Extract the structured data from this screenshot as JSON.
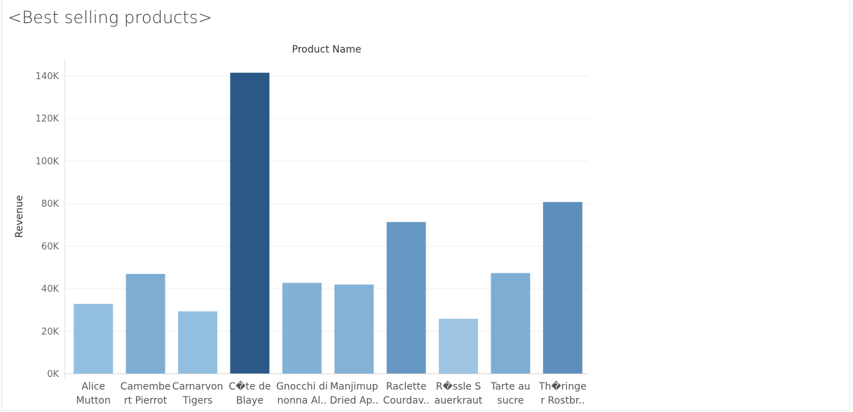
{
  "title": "<Best selling products>",
  "chart_data": {
    "type": "bar",
    "column_header": "Product Name",
    "ylabel": "Revenue",
    "ylim": [
      0,
      140000
    ],
    "yticks": [
      {
        "value": 0,
        "label": "0K"
      },
      {
        "value": 20000,
        "label": "20K"
      },
      {
        "value": 40000,
        "label": "40K"
      },
      {
        "value": 60000,
        "label": "60K"
      },
      {
        "value": 80000,
        "label": "80K"
      },
      {
        "value": 100000,
        "label": "100K"
      },
      {
        "value": 120000,
        "label": "120K"
      },
      {
        "value": 140000,
        "label": "140K"
      }
    ],
    "categories": [
      {
        "lines": [
          "Alice",
          "Mutton"
        ]
      },
      {
        "lines": [
          "Camembe",
          "rt Pierrot"
        ]
      },
      {
        "lines": [
          "Carnarvon",
          "Tigers"
        ]
      },
      {
        "lines": [
          "C�te de",
          "Blaye"
        ]
      },
      {
        "lines": [
          "Gnocchi di",
          "nonna Al.."
        ]
      },
      {
        "lines": [
          "Manjimup",
          "Dried Ap.."
        ]
      },
      {
        "lines": [
          "Raclette",
          "Courdav.."
        ]
      },
      {
        "lines": [
          "R�ssle S",
          "auerkraut"
        ]
      },
      {
        "lines": [
          "Tarte au",
          "sucre"
        ]
      },
      {
        "lines": [
          "Th�ringe",
          "r Rostbr.."
        ]
      }
    ],
    "values": [
      32700,
      46800,
      29200,
      141400,
      42600,
      41800,
      71200,
      25700,
      47200,
      80600
    ],
    "colors": [
      "#92bfdf",
      "#7eadd3",
      "#92bfdf",
      "#2b5886",
      "#82b1d6",
      "#84b2d6",
      "#6698c3",
      "#9dc5e3",
      "#7eadd3",
      "#5e8fbb"
    ],
    "grid": true,
    "legend": "none"
  }
}
